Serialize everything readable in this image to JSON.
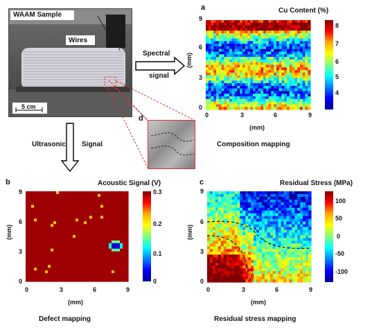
{
  "photo": {
    "title": "WAAM Sample",
    "wires_label": "Wires",
    "scale_label": "5 cm"
  },
  "arrows": {
    "spectral_1": "Spectral",
    "spectral_2": "signal",
    "ultrasonic_1": "Ultrasonic",
    "ultrasonic_2": "Signal"
  },
  "panel_a": {
    "letter": "a",
    "colorbar_title": "Cu Content (%)",
    "colorbar_ticks": [
      "8",
      "7",
      "6",
      "5",
      "4"
    ],
    "x_ticks": [
      "0",
      "3",
      "6",
      "9"
    ],
    "y_ticks": [
      "9",
      "6",
      "3",
      "0"
    ],
    "xlabel": "(mm)",
    "ylabel": "(mm)",
    "caption": "Composition mapping"
  },
  "panel_b": {
    "letter": "b",
    "colorbar_title": "Acoustic Signal (V)",
    "colorbar_ticks": [
      "0.3",
      "0.2",
      "0.1",
      "0"
    ],
    "x_ticks": [
      "0",
      "3",
      "6",
      "9"
    ],
    "y_ticks": [
      "9",
      "6",
      "3",
      "0"
    ],
    "xlabel": "(mm)",
    "ylabel": "(mm)",
    "caption": "Defect mapping"
  },
  "panel_c": {
    "letter": "c",
    "colorbar_title": "Residual Stress (MPa)",
    "colorbar_ticks": [
      "100",
      "50",
      "0",
      "-50",
      "-100"
    ],
    "x_ticks": [
      "0",
      "3",
      "6",
      "9"
    ],
    "y_ticks": [
      "9",
      "6",
      "3",
      "0"
    ],
    "xlabel": "(mm)",
    "ylabel": "(mm)",
    "caption": "Residual stress mapping"
  },
  "panel_d": {
    "letter": "d"
  },
  "colors": {
    "jet_dark_red": "#7f0000",
    "jet_blue": "#1f3fff",
    "inset_dash": "#e03030"
  }
}
